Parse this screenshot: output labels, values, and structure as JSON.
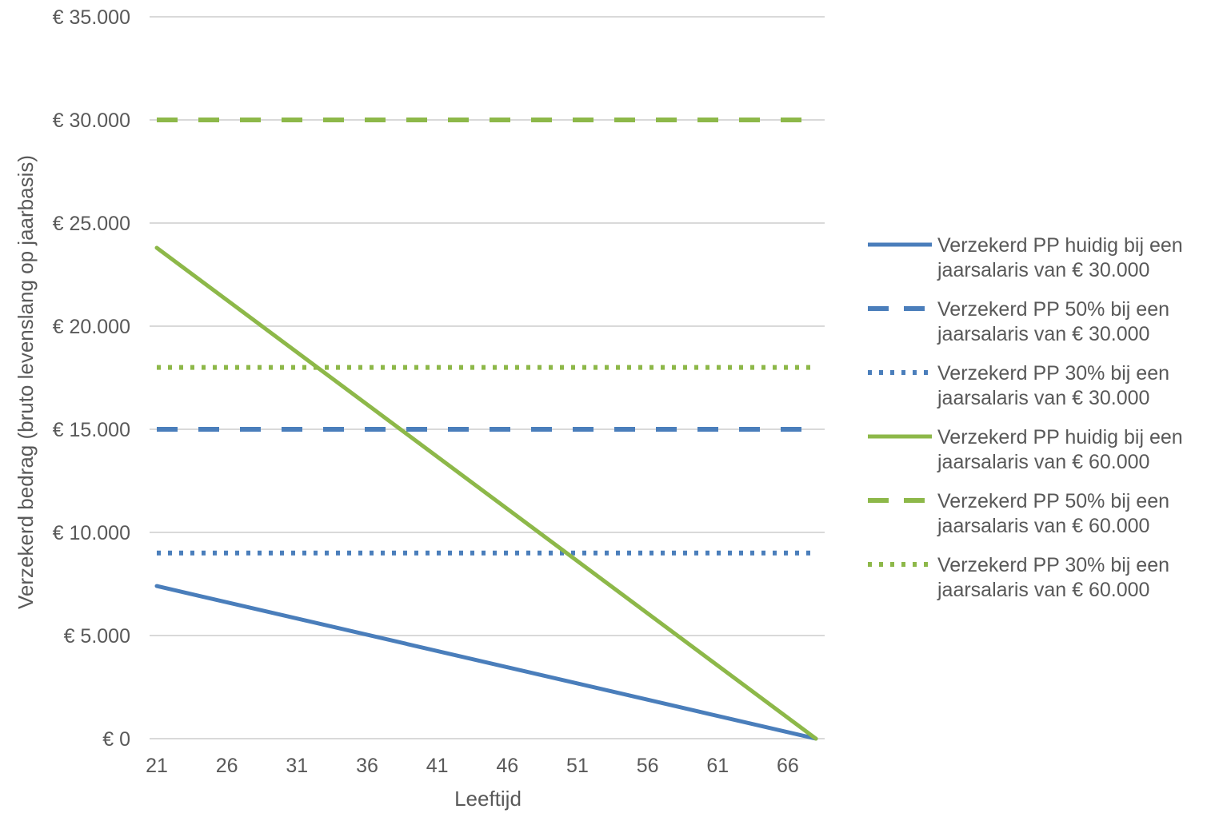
{
  "chart_data": {
    "type": "line",
    "xlabel": "Leeftijd",
    "ylabel": "Verzekerd bedrag (bruto levenslang op jaarbasis)",
    "xlim": [
      21,
      68
    ],
    "ylim": [
      0,
      35000
    ],
    "x_ticks": [
      21,
      26,
      31,
      36,
      41,
      46,
      51,
      56,
      61,
      66
    ],
    "y_ticks": [
      0,
      5000,
      10000,
      15000,
      20000,
      25000,
      30000,
      35000
    ],
    "y_tick_labels": [
      "€ 0",
      "€ 5.000",
      "€ 10.000",
      "€ 15.000",
      "€ 20.000",
      "€ 25.000",
      "€ 30.000",
      "€ 35.000"
    ],
    "grid": "horizontal",
    "legend_position": "right",
    "series": [
      {
        "name": "Verzekerd PP huidig bij een jaarsalaris van € 30.000",
        "legend_lines": [
          "Verzekerd PP huidig bij een",
          "jaarsalaris van € 30.000"
        ],
        "color": "#4a7ebb",
        "dash": "solid",
        "points": [
          [
            21,
            7400
          ],
          [
            68,
            0
          ]
        ]
      },
      {
        "name": "Verzekerd PP 50% bij een jaarsalaris van € 30.000",
        "legend_lines": [
          "Verzekerd PP 50% bij een",
          "jaarsalaris van € 30.000"
        ],
        "color": "#4a7ebb",
        "dash": "dash",
        "points": [
          [
            21,
            15000
          ],
          [
            68,
            15000
          ]
        ]
      },
      {
        "name": "Verzekerd PP 30% bij een jaarsalaris van € 30.000",
        "legend_lines": [
          "Verzekerd PP 30% bij een",
          "jaarsalaris van € 30.000"
        ],
        "color": "#4a7ebb",
        "dash": "dot",
        "points": [
          [
            21,
            9000
          ],
          [
            68,
            9000
          ]
        ]
      },
      {
        "name": "Verzekerd PP huidig bij een jaarsalaris van € 60.000",
        "legend_lines": [
          "Verzekerd PP huidig bij een",
          "jaarsalaris van € 60.000"
        ],
        "color": "#8db849",
        "dash": "solid",
        "points": [
          [
            21,
            23800
          ],
          [
            68,
            0
          ]
        ]
      },
      {
        "name": "Verzekerd PP 50% bij een jaarsalaris van € 60.000",
        "legend_lines": [
          "Verzekerd PP 50% bij een",
          "jaarsalaris van € 60.000"
        ],
        "color": "#8db849",
        "dash": "dash",
        "points": [
          [
            21,
            30000
          ],
          [
            68,
            30000
          ]
        ]
      },
      {
        "name": "Verzekerd PP 30% bij een jaarsalaris van € 60.000",
        "legend_lines": [
          "Verzekerd PP 30% bij een",
          "jaarsalaris van € 60.000"
        ],
        "color": "#8db849",
        "dash": "dot",
        "points": [
          [
            21,
            18000
          ],
          [
            68,
            18000
          ]
        ]
      }
    ]
  }
}
